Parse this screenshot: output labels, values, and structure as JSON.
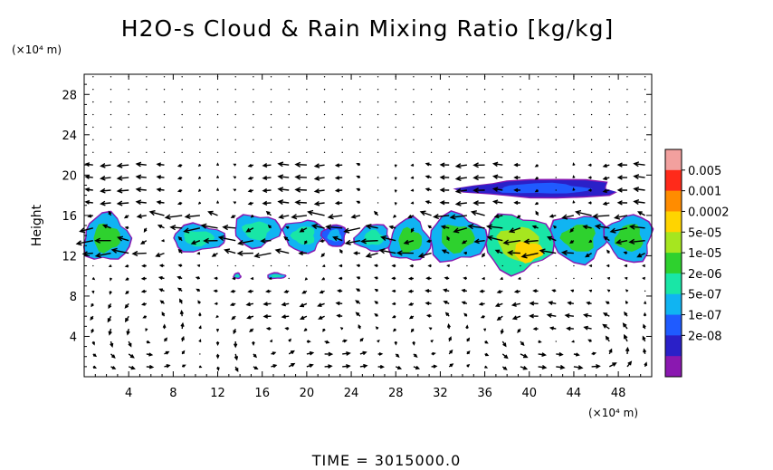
{
  "chart_data": {
    "type": "heatmap",
    "title": "H2O-s Cloud & Rain Mixing Ratio [kg/kg]",
    "ylabel": "Height",
    "y_units": "(×10⁴ m)",
    "x_units": "(×10⁴ m)",
    "xlim": [
      0,
      51
    ],
    "ylim": [
      0,
      30
    ],
    "x_ticks": [
      "4",
      "8",
      "12",
      "16",
      "20",
      "24",
      "28",
      "32",
      "36",
      "40",
      "44",
      "48"
    ],
    "y_ticks": [
      "4",
      "8",
      "12",
      "16",
      "20",
      "24",
      "28"
    ],
    "colorbar": {
      "labels": [
        "0.005",
        "0.001",
        "0.0002",
        "5e-05",
        "1e-05",
        "2e-06",
        "5e-07",
        "1e-07",
        "2e-08"
      ],
      "colors": [
        "#f2a09e",
        "#ff2a1a",
        "#ff8c00",
        "#ffd400",
        "#a6e61f",
        "#2ed12e",
        "#19e6a6",
        "#10b4f2",
        "#1f5bff",
        "#2a20c8",
        "#8a18b0"
      ]
    },
    "cloud_regions": [
      {
        "x": [
          0,
          4
        ],
        "y": [
          11.5,
          16
        ],
        "level": "1e-05"
      },
      {
        "x": [
          8,
          12.5
        ],
        "y": [
          12.5,
          15
        ],
        "level": "2e-06"
      },
      {
        "x": [
          13.5,
          17.5
        ],
        "y": [
          13,
          16
        ],
        "level": "2e-06"
      },
      {
        "x": [
          18,
          21.5
        ],
        "y": [
          12.5,
          15.5
        ],
        "level": "2e-06"
      },
      {
        "x": [
          21.5,
          23.5
        ],
        "y": [
          13,
          15
        ],
        "level": "5e-07"
      },
      {
        "x": [
          24.5,
          27.5
        ],
        "y": [
          12.5,
          15
        ],
        "level": "2e-06"
      },
      {
        "x": [
          27.5,
          31
        ],
        "y": [
          11.5,
          15.5
        ],
        "level": "1e-05"
      },
      {
        "x": [
          31,
          36
        ],
        "y": [
          11.5,
          16
        ],
        "level": "1e-05"
      },
      {
        "x": [
          36,
          42
        ],
        "y": [
          10.5,
          16
        ],
        "level": "5e-05"
      },
      {
        "x": [
          42,
          47
        ],
        "y": [
          11.5,
          16
        ],
        "level": "1e-05"
      },
      {
        "x": [
          47,
          51
        ],
        "y": [
          11.5,
          16
        ],
        "level": "1e-05"
      },
      {
        "x": [
          34.5,
          48
        ],
        "y": [
          17.8,
          19.5
        ],
        "level": "1e-07"
      },
      {
        "x": [
          13.5,
          14
        ],
        "y": [
          9.8,
          10.2
        ],
        "level": "2e-06"
      },
      {
        "x": [
          16.5,
          18
        ],
        "y": [
          9.8,
          10.2
        ],
        "level": "2e-06"
      }
    ]
  },
  "footer": {
    "time_label": "TIME = 3015000.0"
  }
}
